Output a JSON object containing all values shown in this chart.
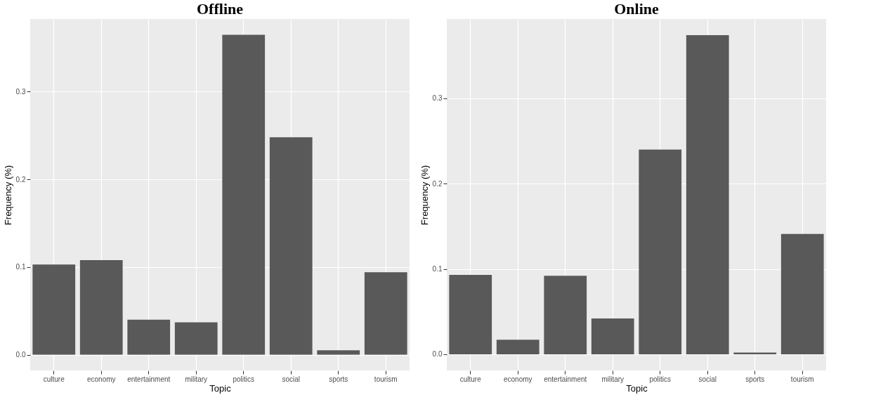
{
  "chart_data": [
    {
      "type": "bar",
      "title": "Offline",
      "xlabel": "Topic",
      "ylabel": "Frequency (%)",
      "categories": [
        "culture",
        "economy",
        "entertainment",
        "military",
        "politics",
        "social",
        "sports",
        "tourism"
      ],
      "values": [
        0.103,
        0.108,
        0.04,
        0.037,
        0.365,
        0.248,
        0.005,
        0.094
      ],
      "color": "#595959",
      "ylim": [
        -0.018,
        0.383
      ],
      "yticks": [
        {
          "value": 0,
          "label": "0.0"
        },
        {
          "value": 0.1,
          "label": "0.1"
        },
        {
          "value": 0.2,
          "label": "0.2"
        },
        {
          "value": 0.3,
          "label": "0.3"
        }
      ],
      "grid": true
    },
    {
      "type": "bar",
      "title": "Online",
      "xlabel": "Topic",
      "ylabel": "Frequency (%)",
      "categories": [
        "culture",
        "economy",
        "entertainment",
        "military",
        "politics",
        "social",
        "sports",
        "tourism"
      ],
      "values": [
        0.093,
        0.017,
        0.092,
        0.042,
        0.24,
        0.374,
        0.002,
        0.141
      ],
      "color": "#595959",
      "ylim": [
        -0.019,
        0.393
      ],
      "yticks": [
        {
          "value": 0,
          "label": "0.0"
        },
        {
          "value": 0.1,
          "label": "0.1"
        },
        {
          "value": 0.2,
          "label": "0.2"
        },
        {
          "value": 0.3,
          "label": "0.3"
        }
      ],
      "grid": true
    }
  ]
}
